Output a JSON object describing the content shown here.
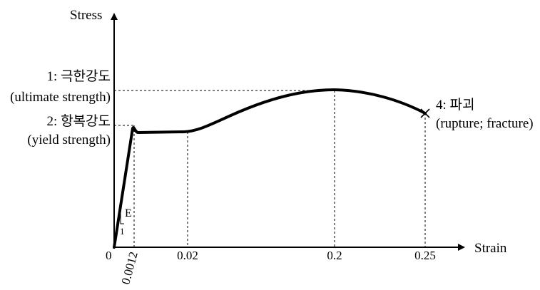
{
  "axes": {
    "y_label": "Stress",
    "x_label": "Strain",
    "origin_label": "0"
  },
  "ticks": {
    "x": [
      {
        "value": 0.0012,
        "label": "0.0012",
        "rotated": true
      },
      {
        "value": 0.02,
        "label": "0.02",
        "rotated": false
      },
      {
        "value": 0.2,
        "label": "0.2",
        "rotated": false
      },
      {
        "value": 0.25,
        "label": "0.25",
        "rotated": false
      }
    ]
  },
  "annotations": {
    "ultimate": {
      "line1": "1: 극한강도",
      "line2": "(ultimate strength)"
    },
    "yield": {
      "line1": "2: 항복강도",
      "line2": "(yield strength)"
    },
    "fracture": {
      "line1": "4: 파괴",
      "line2": "(rupture; fracture)"
    },
    "slope_label": "E",
    "slope_run": "1"
  },
  "colors": {
    "ink": "#000000",
    "background": "#ffffff"
  }
}
